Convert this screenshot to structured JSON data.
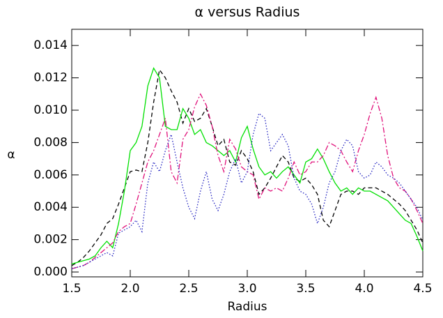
{
  "chart_data": {
    "type": "line",
    "title": "α versus Radius",
    "x_label": "Radius",
    "y_label": "α",
    "x": [
      1.5,
      1.55,
      1.6,
      1.65,
      1.7,
      1.75,
      1.8,
      1.85,
      1.9,
      1.95,
      2.0,
      2.05,
      2.1,
      2.15,
      2.2,
      2.25,
      2.3,
      2.35,
      2.4,
      2.45,
      2.5,
      2.55,
      2.6,
      2.65,
      2.7,
      2.75,
      2.8,
      2.85,
      2.9,
      2.95,
      3.0,
      3.05,
      3.1,
      3.15,
      3.2,
      3.25,
      3.3,
      3.35,
      3.4,
      3.45,
      3.5,
      3.55,
      3.6,
      3.65,
      3.7,
      3.75,
      3.8,
      3.85,
      3.9,
      3.95,
      4.0,
      4.05,
      4.1,
      4.15,
      4.2,
      4.25,
      4.3,
      4.35,
      4.4,
      4.45,
      4.5
    ],
    "series": [
      {
        "color": "#000000",
        "linestyle": "dashed",
        "values": [
          0.0004,
          0.0006,
          0.0009,
          0.0013,
          0.0018,
          0.0023,
          0.003,
          0.0033,
          0.0042,
          0.0052,
          0.0062,
          0.0063,
          0.0062,
          0.008,
          0.0105,
          0.0125,
          0.012,
          0.0112,
          0.0105,
          0.0092,
          0.0101,
          0.0093,
          0.0095,
          0.0101,
          0.009,
          0.0078,
          0.0082,
          0.0068,
          0.0066,
          0.0075,
          0.007,
          0.0062,
          0.0048,
          0.0052,
          0.0058,
          0.0065,
          0.0072,
          0.0068,
          0.0058,
          0.0056,
          0.0058,
          0.0054,
          0.0048,
          0.0032,
          0.0028,
          0.0038,
          0.0048,
          0.005,
          0.005,
          0.0048,
          0.0052,
          0.0052,
          0.0052,
          0.005,
          0.0048,
          0.0045,
          0.0042,
          0.0038,
          0.0032,
          0.0026,
          0.0018
        ]
      },
      {
        "color": "#00e000",
        "linestyle": "solid",
        "values": [
          0.0005,
          0.0006,
          0.0007,
          0.0008,
          0.001,
          0.0015,
          0.0019,
          0.0015,
          0.003,
          0.005,
          0.0075,
          0.008,
          0.009,
          0.0115,
          0.0126,
          0.012,
          0.009,
          0.0088,
          0.0088,
          0.0101,
          0.0095,
          0.0085,
          0.0088,
          0.008,
          0.0078,
          0.0075,
          0.0072,
          0.0075,
          0.0068,
          0.0083,
          0.009,
          0.0076,
          0.0065,
          0.006,
          0.0062,
          0.0058,
          0.0062,
          0.0065,
          0.006,
          0.0055,
          0.0068,
          0.007,
          0.0076,
          0.007,
          0.0062,
          0.0055,
          0.005,
          0.0052,
          0.0048,
          0.0052,
          0.005,
          0.005,
          0.0048,
          0.0046,
          0.0044,
          0.004,
          0.0036,
          0.0032,
          0.003,
          0.0022,
          0.0013
        ]
      },
      {
        "color": "#e0107a",
        "linestyle": "dashdot",
        "values": [
          0.0002,
          0.0003,
          0.0004,
          0.0006,
          0.0009,
          0.0012,
          0.0015,
          0.0018,
          0.0025,
          0.0028,
          0.003,
          0.0042,
          0.0055,
          0.0068,
          0.0075,
          0.0085,
          0.0095,
          0.0062,
          0.0055,
          0.0082,
          0.0088,
          0.0102,
          0.011,
          0.0103,
          0.009,
          0.0072,
          0.0062,
          0.0082,
          0.0076,
          0.0065,
          0.0062,
          0.006,
          0.0045,
          0.0052,
          0.005,
          0.0052,
          0.005,
          0.0058,
          0.0068,
          0.006,
          0.0062,
          0.0068,
          0.0068,
          0.0072,
          0.008,
          0.0078,
          0.0075,
          0.0068,
          0.0062,
          0.0075,
          0.0085,
          0.0098,
          0.0108,
          0.0095,
          0.0072,
          0.0058,
          0.0052,
          0.005,
          0.0045,
          0.0038,
          0.003
        ]
      },
      {
        "color": "#2020c0",
        "linestyle": "dotted",
        "values": [
          0.0002,
          0.0003,
          0.0004,
          0.0006,
          0.0008,
          0.001,
          0.0012,
          0.001,
          0.0024,
          0.0026,
          0.0028,
          0.0032,
          0.0025,
          0.0055,
          0.0068,
          0.0062,
          0.0075,
          0.0085,
          0.0068,
          0.0052,
          0.004,
          0.0033,
          0.005,
          0.0062,
          0.0045,
          0.0038,
          0.0048,
          0.0062,
          0.007,
          0.0055,
          0.0062,
          0.0085,
          0.0098,
          0.0095,
          0.0075,
          0.008,
          0.0085,
          0.0078,
          0.0058,
          0.005,
          0.0048,
          0.0042,
          0.003,
          0.004,
          0.0055,
          0.0062,
          0.0075,
          0.0082,
          0.0078,
          0.0062,
          0.0058,
          0.006,
          0.0068,
          0.0065,
          0.006,
          0.0058,
          0.0055,
          0.005,
          0.0045,
          0.004,
          0.0032
        ]
      }
    ],
    "xlim": [
      1.5,
      4.5
    ],
    "xticks": [
      1.5,
      {
        "value": 2,
        "label": "2.0"
      },
      2.5,
      {
        "value": 3,
        "label": "3.0"
      },
      3.5,
      {
        "value": 4,
        "label": "4.0"
      },
      4.5
    ],
    "ylim": [
      -0.0003,
      0.015
    ],
    "yticks": [
      {
        "value": 0,
        "label": "0.000"
      },
      {
        "value": 0.002,
        "label": "0.002"
      },
      {
        "value": 0.004,
        "label": "0.004"
      },
      {
        "value": 0.006,
        "label": "0.006"
      },
      {
        "value": 0.008,
        "label": "0.008"
      },
      {
        "value": 0.01,
        "label": "0.010"
      },
      {
        "value": 0.012,
        "label": "0.012"
      },
      {
        "value": 0.014,
        "label": "0.014"
      }
    ]
  }
}
